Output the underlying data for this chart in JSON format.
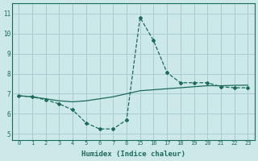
{
  "xlabel": "Humidex (Indice chaleur)",
  "background_color": "#cce8e8",
  "grid_color": "#aacccc",
  "line_color": "#1a6b5a",
  "curve1_x_idx": [
    0,
    1,
    2,
    3,
    4,
    5,
    6,
    7,
    8,
    9,
    10,
    11,
    12,
    13,
    14,
    15,
    16,
    17
  ],
  "curve1_y": [
    6.9,
    6.85,
    6.7,
    6.5,
    6.2,
    5.55,
    5.25,
    5.25,
    5.7,
    10.8,
    9.65,
    8.05,
    7.55,
    7.55,
    7.55,
    7.35,
    7.3,
    7.3
  ],
  "curve2_x_idx": [
    0,
    1,
    2,
    3,
    4,
    5,
    6,
    7,
    8,
    9,
    10,
    11,
    12,
    13,
    14,
    15,
    16,
    17
  ],
  "curve2_y": [
    6.9,
    6.85,
    6.75,
    6.65,
    6.6,
    6.65,
    6.75,
    6.85,
    7.0,
    7.15,
    7.2,
    7.25,
    7.3,
    7.35,
    7.4,
    7.4,
    7.42,
    7.43
  ],
  "xtick_positions": [
    0,
    1,
    2,
    3,
    4,
    5,
    6,
    7,
    8,
    9,
    10,
    11,
    12,
    13,
    14,
    15,
    16,
    17
  ],
  "xtick_labels": [
    "0",
    "1",
    "2",
    "3",
    "4",
    "5",
    "6",
    "7",
    "8",
    "15",
    "16",
    "17",
    "18",
    "19",
    "20",
    "21",
    "22",
    "23"
  ],
  "yticks": [
    5,
    6,
    7,
    8,
    9,
    10,
    11
  ],
  "ylim": [
    4.7,
    11.5
  ],
  "xlim": [
    -0.5,
    17.5
  ]
}
